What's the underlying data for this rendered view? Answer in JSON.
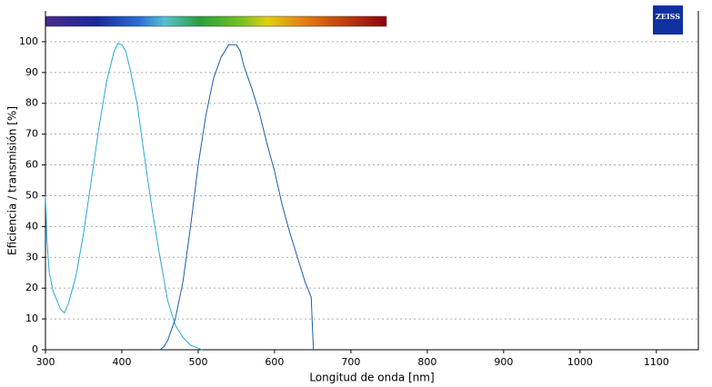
{
  "chart_data": {
    "type": "line",
    "logo": "ZEISS",
    "xlabel": "Longitud de onda [nm]",
    "ylabel": "Eficiencia / transmisión [%]",
    "xlim": [
      300,
      1155
    ],
    "ylim": [
      0,
      110
    ],
    "xticks": [
      300,
      400,
      500,
      600,
      700,
      800,
      900,
      1000,
      1100
    ],
    "yticks": [
      0,
      10,
      20,
      30,
      40,
      50,
      60,
      70,
      80,
      90,
      100
    ],
    "grid": true,
    "series": [
      {
        "color": "#2aa8d8",
        "x": [
          300,
          302,
          305,
          310,
          315,
          320,
          325,
          330,
          340,
          350,
          360,
          370,
          380,
          390,
          395,
          400,
          405,
          410,
          420,
          430,
          440,
          450,
          460,
          470,
          480,
          490,
          500,
          505
        ],
        "values": [
          50,
          35,
          25,
          19,
          16,
          13,
          12,
          15,
          24,
          38,
          55,
          72,
          87,
          97,
          99.5,
          99,
          97,
          92,
          80,
          62,
          45,
          30,
          16,
          8,
          4,
          1.5,
          0.5,
          0
        ]
      },
      {
        "color": "#1a5fa8",
        "x": [
          450,
          455,
          460,
          470,
          480,
          490,
          500,
          510,
          520,
          530,
          540,
          550,
          555,
          560,
          570,
          580,
          590,
          600,
          610,
          620,
          630,
          640,
          645,
          648,
          650,
          651
        ],
        "values": [
          0,
          1,
          3,
          10,
          22,
          40,
          60,
          76,
          88,
          95,
          99,
          99,
          97,
          92,
          85,
          77,
          67,
          58,
          47,
          38,
          30,
          22,
          19,
          17,
          5,
          0
        ]
      }
    ]
  }
}
